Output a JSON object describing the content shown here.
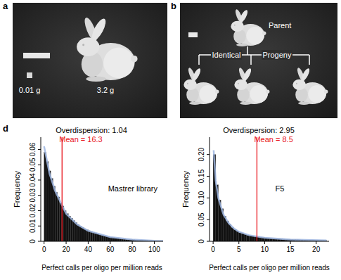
{
  "panel_labels": [
    "a",
    "b",
    "d"
  ],
  "photo_a": {
    "small_mass": "0.01 g",
    "large_mass": "3.2 g"
  },
  "photo_b": {
    "parent": "Parent",
    "identical": "Identical",
    "progeny": "Progeny"
  },
  "chart_data": [
    {
      "type": "histogram",
      "title": "Overdispersion: 1.04",
      "annotation": "Mastrer library",
      "x_label": "Perfect calls per oligo per million reads",
      "y_label": "Frequency",
      "bins": [
        0,
        2,
        4,
        6,
        8,
        10,
        12,
        14,
        16,
        18,
        20,
        22,
        24,
        26,
        28,
        30,
        32,
        34,
        36,
        38,
        40,
        42,
        44,
        46,
        48,
        50,
        52,
        54,
        56,
        58,
        60,
        62,
        64,
        66,
        68,
        70,
        72,
        74,
        76,
        78,
        80,
        82,
        84,
        86,
        88,
        90,
        92,
        94,
        96,
        98,
        100,
        102,
        104,
        106,
        108,
        110,
        112
      ],
      "values": [
        0.058,
        0.052,
        0.046,
        0.041,
        0.036,
        0.032,
        0.029,
        0.025,
        0.023,
        0.02,
        0.018,
        0.0165,
        0.015,
        0.0135,
        0.0122,
        0.011,
        0.0099,
        0.009,
        0.0082,
        0.0075,
        0.0069,
        0.0063,
        0.0057,
        0.0052,
        0.0047,
        0.0043,
        0.0039,
        0.0035,
        0.0032,
        0.0029,
        0.0027,
        0.0024,
        0.0022,
        0.002,
        0.0018,
        0.0016,
        0.0015,
        0.0013,
        0.0012,
        0.0011,
        0.001,
        0.0009,
        0.0008,
        0.0008,
        0.0007,
        0.0006,
        0.0006,
        0.0005,
        0.0005,
        0.0004,
        0.0004,
        0.0004,
        0.0003,
        0.0003,
        0.0003,
        0.0002
      ],
      "color": "#111111",
      "xlim": [
        -3,
        108
      ],
      "ylim": [
        0,
        0.068
      ],
      "xticks": [
        0,
        20,
        40,
        60,
        80,
        100
      ],
      "yticks": [
        0,
        0.01,
        0.02,
        0.03,
        0.04,
        0.05,
        0.06
      ],
      "mean": {
        "value": 16.3,
        "label": "Mean = 16.3",
        "color": "#e8141c"
      },
      "fit": {
        "x": [
          0,
          5,
          10,
          20,
          30,
          40,
          60,
          80,
          100,
          112
        ],
        "y": [
          0.062,
          0.044,
          0.033,
          0.018,
          0.011,
          0.0068,
          0.0028,
          0.0011,
          0.0004,
          0.0002
        ],
        "color": "#9fb6e0"
      }
    },
    {
      "type": "histogram",
      "title": "Overdispersion: 2.95",
      "annotation": "F5",
      "x_label": "Perfect calls per oligo per million reads",
      "y_label": "Frequency",
      "bins": [
        0,
        0.5,
        1,
        1.5,
        2,
        2.5,
        3,
        3.5,
        4,
        4.5,
        5,
        5.5,
        6,
        6.5,
        7,
        7.5,
        8,
        8.5,
        9,
        9.5,
        10,
        10.5,
        11,
        11.5,
        12,
        12.5,
        13,
        13.5,
        14,
        14.5,
        15,
        15.5,
        16,
        16.5,
        17,
        17.5,
        18,
        18.5,
        19,
        19.5,
        20,
        20.5,
        21,
        21.5,
        22
      ],
      "values": [
        0.2,
        0.13,
        0.095,
        0.075,
        0.058,
        0.047,
        0.039,
        0.032,
        0.027,
        0.023,
        0.02,
        0.018,
        0.016,
        0.014,
        0.013,
        0.012,
        0.011,
        0.01,
        0.0093,
        0.0086,
        0.008,
        0.0074,
        0.0069,
        0.0064,
        0.006,
        0.0056,
        0.0052,
        0.0049,
        0.0046,
        0.0043,
        0.004,
        0.0038,
        0.0036,
        0.0034,
        0.0032,
        0.003,
        0.0028,
        0.0027,
        0.0025,
        0.0024,
        0.0023,
        0.0021,
        0.002,
        0.0019
      ],
      "color": "#111111",
      "xlim": [
        -0.7,
        22.5
      ],
      "ylim": [
        0,
        0.24
      ],
      "xticks": [
        0,
        5,
        10,
        15,
        20
      ],
      "yticks": [
        0,
        0.05,
        {
          "value": 0.1,
          "label": "0.10"
        },
        0.15,
        {
          "value": 0.2,
          "label": "0.20"
        }
      ],
      "mean": {
        "value": 8.5,
        "label": "Mean = 8.5",
        "color": "#e8141c"
      },
      "fit": {
        "x": [
          0.1,
          0.5,
          1,
          2,
          3,
          4,
          5,
          7,
          10,
          15,
          22
        ],
        "y": [
          0.21,
          0.14,
          0.1,
          0.062,
          0.042,
          0.03,
          0.022,
          0.014,
          0.008,
          0.004,
          0.0019
        ],
        "color": "#9fb6e0"
      }
    }
  ]
}
